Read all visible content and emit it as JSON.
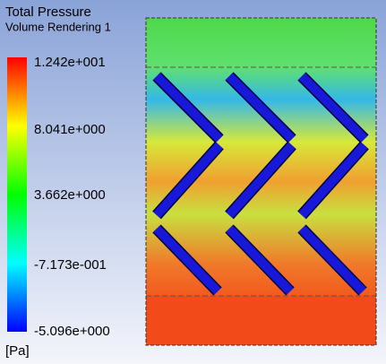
{
  "legend": {
    "title": "Total Pressure",
    "subtitle": "Volume Rendering 1",
    "ticks": [
      "1.242e+001",
      "8.041e+000",
      "3.662e+000",
      "-7.173e-001",
      "-5.096e+000"
    ],
    "unit": "[Pa]"
  }
}
